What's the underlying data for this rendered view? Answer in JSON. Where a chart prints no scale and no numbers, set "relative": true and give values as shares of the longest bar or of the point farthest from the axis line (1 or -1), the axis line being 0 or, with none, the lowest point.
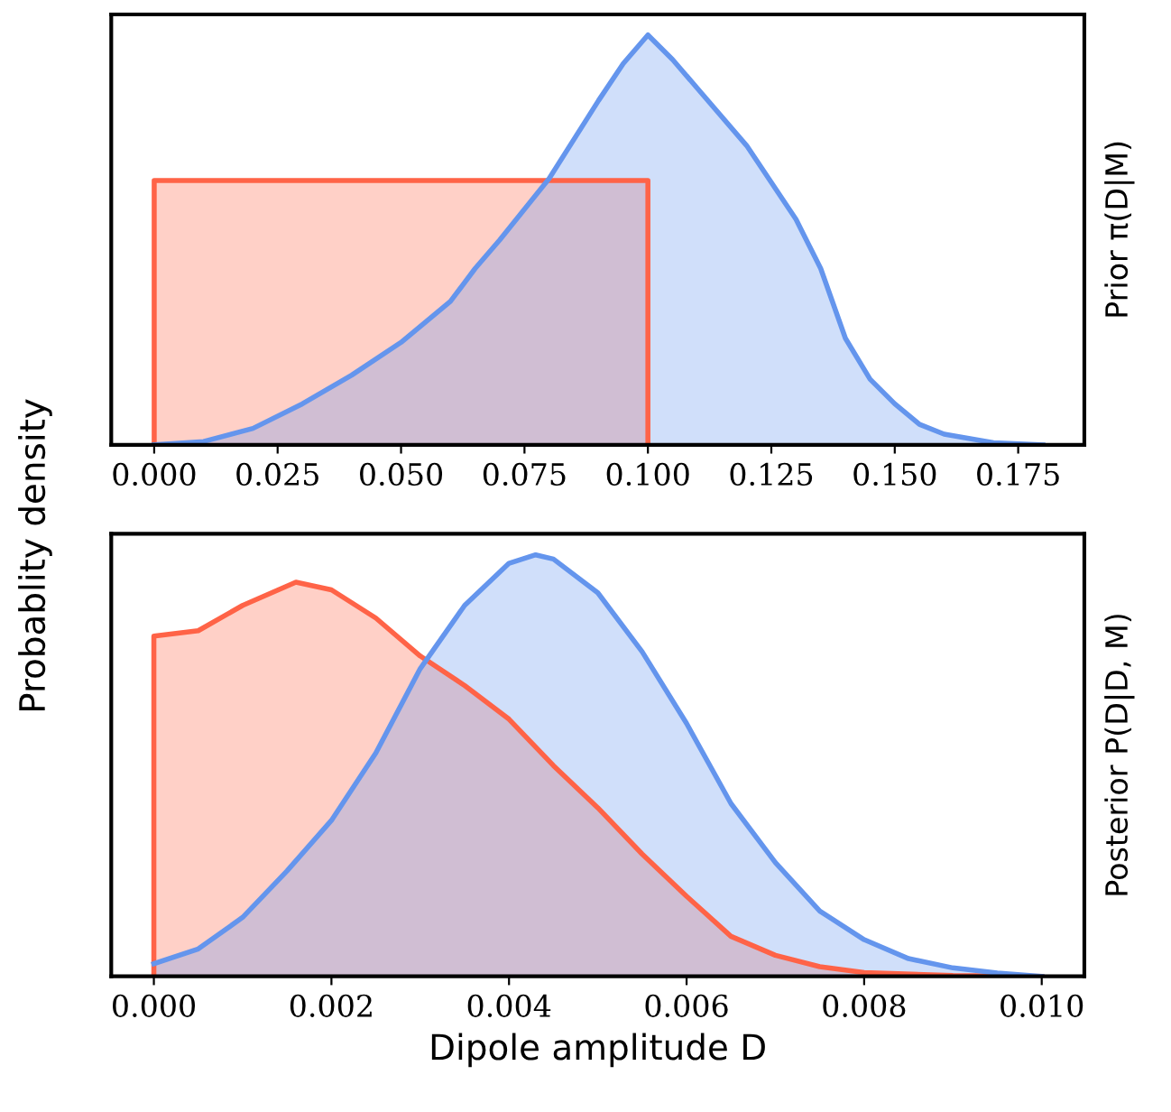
{
  "chart_data": [
    {
      "type": "area",
      "relative": true,
      "ylabel": "Probablity density",
      "y2label": "Prior π(D|M)",
      "xlim": [
        -0.0087,
        0.1884
      ],
      "xticks": [
        {
          "value": 0,
          "label": "0.000"
        },
        {
          "value": 0.025,
          "label": "0.025"
        },
        {
          "value": 0.05,
          "label": "0.050"
        },
        {
          "value": 0.075,
          "label": "0.075"
        },
        {
          "value": 0.1,
          "label": "0.100"
        },
        {
          "value": 0.125,
          "label": "0.125"
        },
        {
          "value": 0.15,
          "label": "0.150"
        },
        {
          "value": 0.175,
          "label": "0.175"
        }
      ],
      "tick_labels": "x",
      "grid": false,
      "legend": false,
      "series": [
        {
          "color": "#ff6347",
          "x": [
            0,
            0,
            0.1,
            0.1
          ],
          "values": [
            0,
            0.645,
            0.645,
            0
          ]
        },
        {
          "color": "#6495ed",
          "x": [
            0,
            0.01,
            0.02,
            0.03,
            0.04,
            0.05,
            0.06,
            0.065,
            0.07,
            0.08,
            0.09,
            0.095,
            0.1,
            0.105,
            0.11,
            0.12,
            0.13,
            0.135,
            0.14,
            0.145,
            0.15,
            0.155,
            0.16,
            0.17,
            0.18
          ],
          "values": [
            0,
            0.008,
            0.04,
            0.1,
            0.17,
            0.25,
            0.35,
            0.43,
            0.5,
            0.65,
            0.84,
            0.93,
            1,
            0.94,
            0.87,
            0.73,
            0.55,
            0.43,
            0.26,
            0.16,
            0.1,
            0.05,
            0.026,
            0.005,
            0
          ]
        }
      ]
    },
    {
      "type": "area",
      "relative": true,
      "xlabel": "Dipole amplitude D",
      "y2label": "Posterior P(D|D, M)",
      "xlim": [
        -0.00048,
        0.01048
      ],
      "xticks": [
        {
          "value": 0,
          "label": "0.000"
        },
        {
          "value": 0.002,
          "label": "0.002"
        },
        {
          "value": 0.004,
          "label": "0.004"
        },
        {
          "value": 0.006,
          "label": "0.006"
        },
        {
          "value": 0.008,
          "label": "0.008"
        },
        {
          "value": 0.01,
          "label": "0.010"
        }
      ],
      "tick_labels": "x",
      "grid": false,
      "legend": false,
      "series": [
        {
          "color": "#ff6347",
          "x": [
            0,
            0,
            0.0005,
            0.001,
            0.0016,
            0.002,
            0.0025,
            0.003,
            0.0035,
            0.004,
            0.0045,
            0.005,
            0.0055,
            0.006,
            0.0065,
            0.007,
            0.0075,
            0.008,
            0.009,
            0.01
          ],
          "values": [
            0,
            0.807,
            0.82,
            0.88,
            0.935,
            0.917,
            0.85,
            0.76,
            0.69,
            0.61,
            0.5,
            0.4,
            0.29,
            0.19,
            0.095,
            0.05,
            0.023,
            0.009,
            0.002,
            0
          ]
        },
        {
          "color": "#6495ed",
          "x": [
            0,
            0.0005,
            0.001,
            0.0015,
            0.002,
            0.0025,
            0.003,
            0.0035,
            0.004,
            0.0043,
            0.0045,
            0.005,
            0.0055,
            0.006,
            0.0065,
            0.007,
            0.0075,
            0.008,
            0.0085,
            0.009,
            0.0095,
            0.01
          ],
          "values": [
            0.03,
            0.065,
            0.14,
            0.25,
            0.37,
            0.53,
            0.73,
            0.88,
            0.98,
            1,
            0.99,
            0.91,
            0.77,
            0.6,
            0.41,
            0.27,
            0.155,
            0.087,
            0.042,
            0.02,
            0.008,
            0
          ]
        }
      ]
    }
  ]
}
